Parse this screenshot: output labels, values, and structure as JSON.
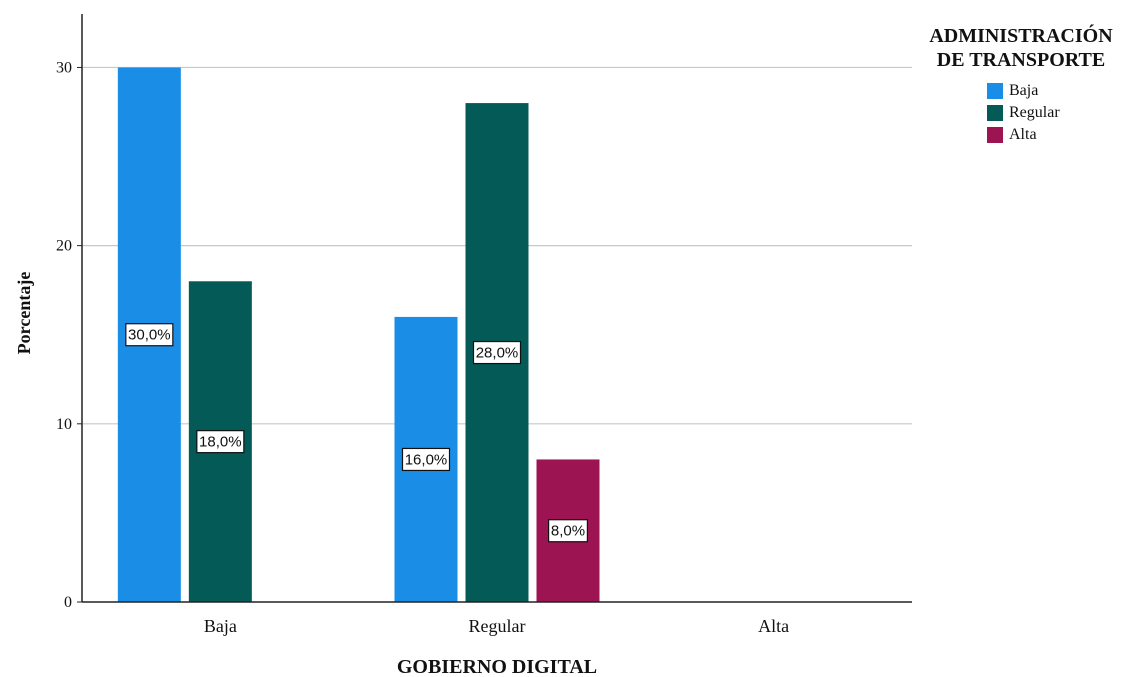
{
  "chart_data": {
    "type": "bar",
    "categories": [
      "Baja",
      "Regular",
      "Alta"
    ],
    "series": [
      {
        "name": "Baja",
        "values": [
          30,
          16,
          null
        ],
        "labels": [
          "30,0%",
          "16,0%",
          ""
        ]
      },
      {
        "name": "Regular",
        "values": [
          18,
          28,
          null
        ],
        "labels": [
          "18,0%",
          "28,0%",
          ""
        ]
      },
      {
        "name": "Alta",
        "values": [
          null,
          8,
          null
        ],
        "labels": [
          "",
          "8,0%",
          ""
        ]
      }
    ],
    "colors": [
      "#1a8ee6",
      "#035a57",
      "#9c1451"
    ],
    "xlabel": "GOBIERNO DIGITAL",
    "ylabel": "Porcentaje",
    "ylim": [
      0,
      33
    ],
    "yticks": [
      0,
      10,
      20,
      30
    ],
    "grid": true,
    "legend": {
      "title_line1": "ADMINISTRACIÓN",
      "title_line2": "DE TRANSPORTE",
      "placement": "top-right",
      "items": [
        "Baja",
        "Regular",
        "Alta"
      ]
    }
  }
}
